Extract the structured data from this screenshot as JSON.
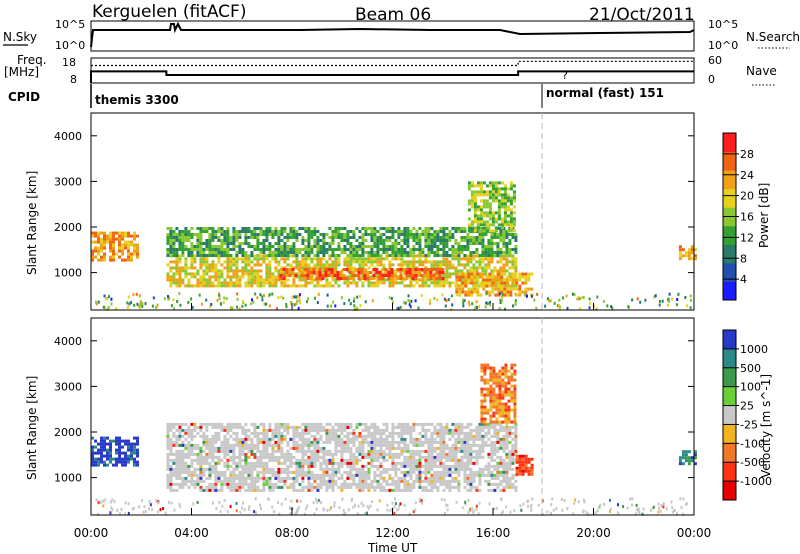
{
  "header": {
    "station": "Kerguelen (fitACF)",
    "beam": "Beam 06",
    "date": "21/Oct/2011"
  },
  "sky_panel": {
    "left_label": "N.Sky",
    "left_ticks": [
      "10^5",
      "10^0"
    ],
    "right_label": "N.Search",
    "right_ticks": [
      "10^5",
      "10^0"
    ],
    "right_line_style": "dotted"
  },
  "freq_panel": {
    "left_label_lines": [
      "Freq.",
      "[MHz]"
    ],
    "left_ticks": [
      "18",
      "8"
    ],
    "right_label": "Nave",
    "right_ticks": [
      "60",
      "0"
    ],
    "right_line_style": "dotted",
    "freq_levels_mhz": [
      {
        "from": 0.0,
        "to": 3.0,
        "value": 12.5
      },
      {
        "from": 3.0,
        "to": 17.0,
        "value": 10.5
      },
      {
        "from": 17.0,
        "to": 24.0,
        "value": 12.5
      }
    ],
    "nave_values": [
      {
        "from": 0.0,
        "to": 17.0,
        "value": 42
      },
      {
        "from": 17.0,
        "to": 24.0,
        "value": 52
      }
    ]
  },
  "cpid": {
    "label": "CPID",
    "modes": [
      {
        "name": "themis 3300",
        "start_hour": 0.0
      },
      {
        "name": "normal (fast) 151",
        "start_hour": 18.0
      }
    ]
  },
  "x_axis": {
    "label": "Time UT",
    "ticks": [
      "00:00",
      "04:00",
      "08:00",
      "12:00",
      "16:00",
      "20:00",
      "00:00"
    ],
    "tick_hours": [
      0,
      4,
      8,
      12,
      16,
      20,
      24
    ],
    "range": [
      0,
      24
    ]
  },
  "chart_data": [
    {
      "type": "heatmap",
      "name": "Power",
      "ylabel": "Slant Range [km]",
      "yticks": [
        "1000",
        "2000",
        "3000",
        "4000"
      ],
      "ytick_values": [
        1000,
        2000,
        3000,
        4000
      ],
      "ylim": [
        180,
        4500
      ],
      "x_range_hours": [
        0,
        24
      ],
      "colorbar_label": "Power [dB]",
      "colorbar_ticks": [
        "4",
        "8",
        "12",
        "16",
        "20",
        "24",
        "28"
      ],
      "colorbar_tick_values": [
        4,
        8,
        12,
        16,
        20,
        24,
        28
      ],
      "colorbar_range": [
        0,
        32
      ],
      "colorbar_colors": [
        "#1a1aff",
        "#2350b0",
        "#2a7a6a",
        "#33a032",
        "#8ac832",
        "#e6d21e",
        "#f0a014",
        "#f06414",
        "#ff1e1e"
      ],
      "echo_regions": [
        {
          "t0": 0.0,
          "t1": 1.9,
          "r0": 1300,
          "r1": 1900,
          "level": 22
        },
        {
          "t0": 3.0,
          "t1": 16.9,
          "r0": 700,
          "r1": 1400,
          "level": 20
        },
        {
          "t0": 3.0,
          "t1": 16.9,
          "r0": 1400,
          "r1": 2000,
          "level": 12
        },
        {
          "t0": 7.5,
          "t1": 14.0,
          "r0": 900,
          "r1": 1100,
          "level": 26
        },
        {
          "t0": 14.5,
          "t1": 17.5,
          "r0": 500,
          "r1": 1000,
          "level": 24
        },
        {
          "t0": 15.0,
          "t1": 16.9,
          "r0": 1900,
          "r1": 3000,
          "level": 14
        },
        {
          "t0": 23.4,
          "t1": 24.0,
          "r0": 1300,
          "r1": 1600,
          "level": 22
        }
      ]
    },
    {
      "type": "heatmap",
      "name": "Velocity",
      "ylabel": "Slant Range [km]",
      "yticks": [
        "1000",
        "2000",
        "3000",
        "4000"
      ],
      "ytick_values": [
        1000,
        2000,
        3000,
        4000
      ],
      "ylim": [
        180,
        4500
      ],
      "x_range_hours": [
        0,
        24
      ],
      "colorbar_label": "Velocity [m s^-1]",
      "colorbar_ticks": [
        "1000",
        "500",
        "100",
        "25",
        "-25",
        "-100",
        "-500",
        "-1000"
      ],
      "colorbar_colors": [
        "#2a3ac8",
        "#2a8a8a",
        "#3a9a4a",
        "#6ad03a",
        "#c8c8c8",
        "#f0b41e",
        "#f07828",
        "#ff3214",
        "#e60000"
      ],
      "echo_regions": [
        {
          "t0": 0.0,
          "t1": 1.9,
          "r0": 1300,
          "r1": 1900,
          "category": "1000"
        },
        {
          "t0": 3.0,
          "t1": 16.9,
          "r0": 700,
          "r1": 2200,
          "category": "-25"
        },
        {
          "t0": 15.5,
          "t1": 16.9,
          "r0": 2200,
          "r1": 3500,
          "category": "-500"
        },
        {
          "t0": 16.9,
          "t1": 17.6,
          "r0": 1100,
          "r1": 1500,
          "category": "-1000"
        },
        {
          "t0": 23.4,
          "t1": 24.0,
          "r0": 1300,
          "r1": 1600,
          "category": "500"
        }
      ]
    }
  ]
}
